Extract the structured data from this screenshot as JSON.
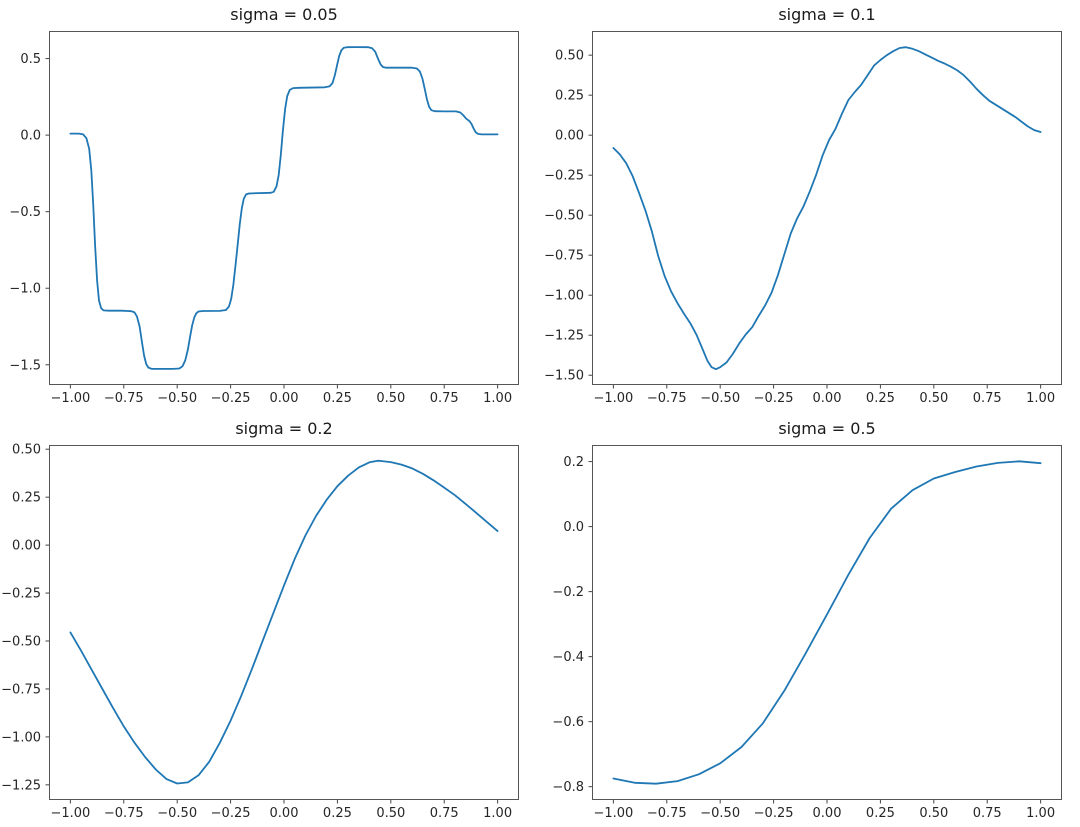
{
  "figure": {
    "background": "#ffffff"
  },
  "chart_data": [
    {
      "type": "line",
      "title": "sigma = 0.05",
      "line_color": "#1f77b4",
      "grid": false,
      "legend": null,
      "xlim": [
        -1.1,
        1.1
      ],
      "ylim": [
        -1.632,
        0.68
      ],
      "x_tick_values": [
        -1.0,
        -0.75,
        -0.5,
        -0.25,
        0.0,
        0.25,
        0.5,
        0.75,
        1.0
      ],
      "x_tick_labels": [
        "−1.00",
        "−0.75",
        "−0.50",
        "−0.25",
        "0.00",
        "0.25",
        "0.50",
        "0.75",
        "1.00"
      ],
      "y_tick_values": [
        0.5,
        0.0,
        -0.5,
        -1.0,
        -1.5
      ],
      "y_tick_labels": [
        "0.5",
        "0.0",
        "−0.5",
        "−1.0",
        "−1.5"
      ],
      "points": [
        [
          -1.0,
          0.01
        ],
        [
          -0.96,
          0.01
        ],
        [
          -0.94,
          0.005
        ],
        [
          -0.925,
          -0.02
        ],
        [
          -0.912,
          -0.09
        ],
        [
          -0.902,
          -0.23
        ],
        [
          -0.893,
          -0.45
        ],
        [
          -0.884,
          -0.72
        ],
        [
          -0.875,
          -0.95
        ],
        [
          -0.866,
          -1.08
        ],
        [
          -0.856,
          -1.13
        ],
        [
          -0.845,
          -1.145
        ],
        [
          -0.82,
          -1.147
        ],
        [
          -0.76,
          -1.147
        ],
        [
          -0.715,
          -1.15
        ],
        [
          -0.7,
          -1.158
        ],
        [
          -0.688,
          -1.185
        ],
        [
          -0.676,
          -1.25
        ],
        [
          -0.665,
          -1.35
        ],
        [
          -0.655,
          -1.44
        ],
        [
          -0.645,
          -1.495
        ],
        [
          -0.635,
          -1.518
        ],
        [
          -0.62,
          -1.526
        ],
        [
          -0.59,
          -1.527
        ],
        [
          -0.52,
          -1.527
        ],
        [
          -0.49,
          -1.524
        ],
        [
          -0.475,
          -1.51
        ],
        [
          -0.462,
          -1.47
        ],
        [
          -0.45,
          -1.4
        ],
        [
          -0.44,
          -1.32
        ],
        [
          -0.43,
          -1.245
        ],
        [
          -0.42,
          -1.19
        ],
        [
          -0.41,
          -1.163
        ],
        [
          -0.4,
          -1.152
        ],
        [
          -0.38,
          -1.149
        ],
        [
          -0.3,
          -1.148
        ],
        [
          -0.272,
          -1.142
        ],
        [
          -0.258,
          -1.12
        ],
        [
          -0.247,
          -1.07
        ],
        [
          -0.237,
          -0.975
        ],
        [
          -0.227,
          -0.85
        ],
        [
          -0.217,
          -0.72
        ],
        [
          -0.207,
          -0.58
        ],
        [
          -0.197,
          -0.475
        ],
        [
          -0.188,
          -0.415
        ],
        [
          -0.178,
          -0.388
        ],
        [
          -0.165,
          -0.381
        ],
        [
          -0.12,
          -0.379
        ],
        [
          -0.062,
          -0.377
        ],
        [
          -0.048,
          -0.37
        ],
        [
          -0.035,
          -0.335
        ],
        [
          -0.025,
          -0.26
        ],
        [
          -0.015,
          -0.13
        ],
        [
          -0.005,
          0.03
        ],
        [
          0.005,
          0.17
        ],
        [
          0.015,
          0.255
        ],
        [
          0.027,
          0.295
        ],
        [
          0.042,
          0.307
        ],
        [
          0.07,
          0.309
        ],
        [
          0.19,
          0.312
        ],
        [
          0.213,
          0.318
        ],
        [
          0.227,
          0.34
        ],
        [
          0.238,
          0.39
        ],
        [
          0.248,
          0.455
        ],
        [
          0.258,
          0.515
        ],
        [
          0.268,
          0.553
        ],
        [
          0.28,
          0.57
        ],
        [
          0.295,
          0.574
        ],
        [
          0.33,
          0.575
        ],
        [
          0.395,
          0.574
        ],
        [
          0.413,
          0.567
        ],
        [
          0.427,
          0.545
        ],
        [
          0.44,
          0.5
        ],
        [
          0.452,
          0.462
        ],
        [
          0.463,
          0.445
        ],
        [
          0.478,
          0.44
        ],
        [
          0.52,
          0.44
        ],
        [
          0.6,
          0.44
        ],
        [
          0.622,
          0.435
        ],
        [
          0.636,
          0.415
        ],
        [
          0.648,
          0.37
        ],
        [
          0.659,
          0.3
        ],
        [
          0.669,
          0.235
        ],
        [
          0.679,
          0.185
        ],
        [
          0.69,
          0.163
        ],
        [
          0.705,
          0.156
        ],
        [
          0.75,
          0.155
        ],
        [
          0.805,
          0.155
        ],
        [
          0.825,
          0.148
        ],
        [
          0.84,
          0.128
        ],
        [
          0.853,
          0.107
        ],
        [
          0.868,
          0.092
        ],
        [
          0.878,
          0.072
        ],
        [
          0.888,
          0.042
        ],
        [
          0.898,
          0.018
        ],
        [
          0.908,
          0.008
        ],
        [
          0.925,
          0.005
        ],
        [
          0.96,
          0.005
        ],
        [
          1.0,
          0.005
        ]
      ]
    },
    {
      "type": "line",
      "title": "sigma = 0.1",
      "line_color": "#1f77b4",
      "grid": false,
      "legend": null,
      "xlim": [
        -1.1,
        1.1
      ],
      "ylim": [
        -1.561,
        0.651
      ],
      "x_tick_values": [
        -1.0,
        -0.75,
        -0.5,
        -0.25,
        0.0,
        0.25,
        0.5,
        0.75,
        1.0
      ],
      "x_tick_labels": [
        "−1.00",
        "−0.75",
        "−0.50",
        "−0.25",
        "0.00",
        "0.25",
        "0.50",
        "0.75",
        "1.00"
      ],
      "y_tick_values": [
        0.5,
        0.25,
        0.0,
        -0.25,
        -0.5,
        -0.75,
        -1.0,
        -1.25,
        -1.5
      ],
      "y_tick_labels": [
        "0.50",
        "0.25",
        "0.00",
        "−0.25",
        "−0.50",
        "−0.75",
        "−1.00",
        "−1.25",
        "−1.50"
      ],
      "points": [
        [
          -1.0,
          -0.08
        ],
        [
          -0.97,
          -0.12
        ],
        [
          -0.94,
          -0.175
        ],
        [
          -0.91,
          -0.255
        ],
        [
          -0.88,
          -0.36
        ],
        [
          -0.85,
          -0.47
        ],
        [
          -0.82,
          -0.6
        ],
        [
          -0.79,
          -0.755
        ],
        [
          -0.76,
          -0.88
        ],
        [
          -0.73,
          -0.975
        ],
        [
          -0.7,
          -1.05
        ],
        [
          -0.67,
          -1.115
        ],
        [
          -0.64,
          -1.175
        ],
        [
          -0.61,
          -1.25
        ],
        [
          -0.58,
          -1.345
        ],
        [
          -0.56,
          -1.41
        ],
        [
          -0.54,
          -1.45
        ],
        [
          -0.52,
          -1.462
        ],
        [
          -0.5,
          -1.45
        ],
        [
          -0.47,
          -1.42
        ],
        [
          -0.44,
          -1.365
        ],
        [
          -0.41,
          -1.3
        ],
        [
          -0.38,
          -1.245
        ],
        [
          -0.35,
          -1.2
        ],
        [
          -0.32,
          -1.13
        ],
        [
          -0.29,
          -1.065
        ],
        [
          -0.26,
          -0.985
        ],
        [
          -0.23,
          -0.875
        ],
        [
          -0.2,
          -0.745
        ],
        [
          -0.17,
          -0.615
        ],
        [
          -0.14,
          -0.52
        ],
        [
          -0.11,
          -0.445
        ],
        [
          -0.08,
          -0.35
        ],
        [
          -0.05,
          -0.245
        ],
        [
          -0.02,
          -0.125
        ],
        [
          0.01,
          -0.03
        ],
        [
          0.04,
          0.04
        ],
        [
          0.07,
          0.135
        ],
        [
          0.1,
          0.22
        ],
        [
          0.13,
          0.27
        ],
        [
          0.16,
          0.315
        ],
        [
          0.19,
          0.375
        ],
        [
          0.22,
          0.435
        ],
        [
          0.25,
          0.47
        ],
        [
          0.28,
          0.5
        ],
        [
          0.31,
          0.525
        ],
        [
          0.34,
          0.545
        ],
        [
          0.37,
          0.55
        ],
        [
          0.4,
          0.54
        ],
        [
          0.43,
          0.525
        ],
        [
          0.46,
          0.505
        ],
        [
          0.49,
          0.485
        ],
        [
          0.52,
          0.465
        ],
        [
          0.55,
          0.448
        ],
        [
          0.58,
          0.428
        ],
        [
          0.61,
          0.405
        ],
        [
          0.64,
          0.375
        ],
        [
          0.67,
          0.335
        ],
        [
          0.7,
          0.29
        ],
        [
          0.73,
          0.25
        ],
        [
          0.76,
          0.215
        ],
        [
          0.79,
          0.19
        ],
        [
          0.82,
          0.165
        ],
        [
          0.85,
          0.14
        ],
        [
          0.88,
          0.115
        ],
        [
          0.91,
          0.085
        ],
        [
          0.94,
          0.055
        ],
        [
          0.97,
          0.032
        ],
        [
          1.0,
          0.02
        ]
      ]
    },
    {
      "type": "line",
      "title": "sigma = 0.2",
      "line_color": "#1f77b4",
      "grid": false,
      "legend": null,
      "xlim": [
        -1.1,
        1.1
      ],
      "ylim": [
        -1.329,
        0.522
      ],
      "x_tick_values": [
        -1.0,
        -0.75,
        -0.5,
        -0.25,
        0.0,
        0.25,
        0.5,
        0.75,
        1.0
      ],
      "x_tick_labels": [
        "−1.00",
        "−0.75",
        "−0.50",
        "−0.25",
        "0.00",
        "0.25",
        "0.50",
        "0.75",
        "1.00"
      ],
      "y_tick_values": [
        0.5,
        0.25,
        0.0,
        -0.25,
        -0.5,
        -0.75,
        -1.0,
        -1.25
      ],
      "y_tick_labels": [
        "0.50",
        "0.25",
        "0.00",
        "−0.25",
        "−0.50",
        "−0.75",
        "−1.00",
        "−1.25"
      ],
      "points": [
        [
          -1.0,
          -0.455
        ],
        [
          -0.95,
          -0.55
        ],
        [
          -0.9,
          -0.65
        ],
        [
          -0.85,
          -0.75
        ],
        [
          -0.8,
          -0.85
        ],
        [
          -0.75,
          -0.945
        ],
        [
          -0.7,
          -1.03
        ],
        [
          -0.65,
          -1.105
        ],
        [
          -0.6,
          -1.17
        ],
        [
          -0.55,
          -1.22
        ],
        [
          -0.5,
          -1.243
        ],
        [
          -0.45,
          -1.237
        ],
        [
          -0.4,
          -1.2
        ],
        [
          -0.35,
          -1.13
        ],
        [
          -0.3,
          -1.03
        ],
        [
          -0.25,
          -0.915
        ],
        [
          -0.2,
          -0.785
        ],
        [
          -0.15,
          -0.645
        ],
        [
          -0.1,
          -0.5
        ],
        [
          -0.05,
          -0.355
        ],
        [
          0.0,
          -0.21
        ],
        [
          0.05,
          -0.072
        ],
        [
          0.1,
          0.05
        ],
        [
          0.15,
          0.152
        ],
        [
          0.2,
          0.237
        ],
        [
          0.25,
          0.307
        ],
        [
          0.3,
          0.362
        ],
        [
          0.35,
          0.405
        ],
        [
          0.4,
          0.432
        ],
        [
          0.44,
          0.44
        ],
        [
          0.5,
          0.433
        ],
        [
          0.55,
          0.42
        ],
        [
          0.6,
          0.4
        ],
        [
          0.65,
          0.372
        ],
        [
          0.7,
          0.338
        ],
        [
          0.75,
          0.3
        ],
        [
          0.8,
          0.26
        ],
        [
          0.85,
          0.215
        ],
        [
          0.9,
          0.168
        ],
        [
          0.95,
          0.12
        ],
        [
          1.0,
          0.073
        ]
      ]
    },
    {
      "type": "line",
      "title": "sigma = 0.5",
      "line_color": "#1f77b4",
      "grid": false,
      "legend": null,
      "xlim": [
        -1.1,
        1.1
      ],
      "ylim": [
        -0.841,
        0.251
      ],
      "x_tick_values": [
        -1.0,
        -0.75,
        -0.5,
        -0.25,
        0.0,
        0.25,
        0.5,
        0.75,
        1.0
      ],
      "x_tick_labels": [
        "−1.00",
        "−0.75",
        "−0.50",
        "−0.25",
        "0.00",
        "0.25",
        "0.50",
        "0.75",
        "1.00"
      ],
      "y_tick_values": [
        0.2,
        0.0,
        -0.2,
        -0.4,
        -0.6,
        -0.8
      ],
      "y_tick_labels": [
        "0.2",
        "0.0",
        "−0.2",
        "−0.4",
        "−0.6",
        "−0.8"
      ],
      "points": [
        [
          -1.0,
          -0.775
        ],
        [
          -0.9,
          -0.788
        ],
        [
          -0.8,
          -0.791
        ],
        [
          -0.7,
          -0.783
        ],
        [
          -0.6,
          -0.762
        ],
        [
          -0.5,
          -0.728
        ],
        [
          -0.4,
          -0.678
        ],
        [
          -0.3,
          -0.605
        ],
        [
          -0.2,
          -0.505
        ],
        [
          -0.1,
          -0.39
        ],
        [
          0.0,
          -0.27
        ],
        [
          0.1,
          -0.148
        ],
        [
          0.2,
          -0.035
        ],
        [
          0.3,
          0.055
        ],
        [
          0.4,
          0.112
        ],
        [
          0.5,
          0.148
        ],
        [
          0.6,
          0.168
        ],
        [
          0.7,
          0.185
        ],
        [
          0.8,
          0.196
        ],
        [
          0.9,
          0.201
        ],
        [
          1.0,
          0.195
        ]
      ]
    }
  ]
}
